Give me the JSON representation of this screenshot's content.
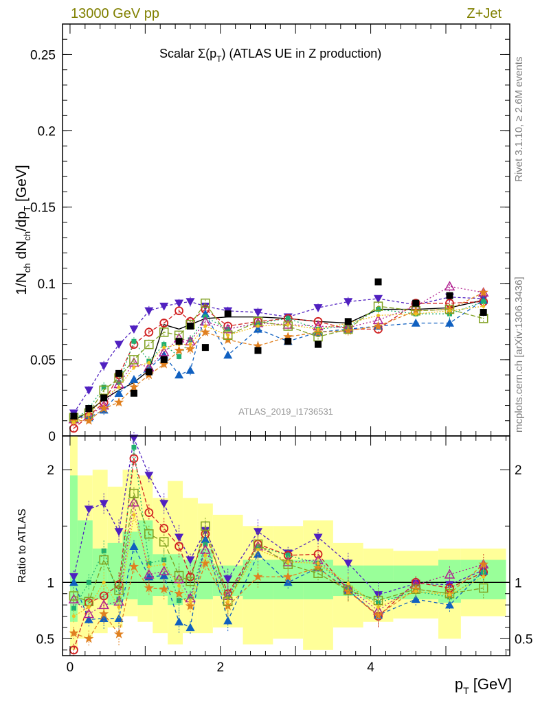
{
  "header": {
    "left": "13000 GeV pp",
    "right": "Z+Jet"
  },
  "side_labels": {
    "rivet": "Rivet 3.1.10, ≥ 2.6M events",
    "mcplots": "mcplots.cern.ch [arXiv:1306.3436]"
  },
  "watermark": "ATLAS_2019_I1736531",
  "colors": {
    "data": "#000000",
    "band_inner": "#99ff99",
    "band_outer": "#ffff99",
    "header": "#808000",
    "side": "#7f7f7f"
  },
  "chart_data": [
    {
      "type": "scatter",
      "title": "Scalar Σ(p_T) (ATLAS UE in Z production)",
      "title_main": "Scalar Σ(p",
      "title_sub": "T",
      "title_tail": ") (ATLAS UE in Z production)",
      "ylabel": "1/N_ch dN_ch/dp_T [GeV]",
      "xlim": [
        -0.1,
        5.85
      ],
      "ylim": [
        0,
        0.27
      ],
      "yticks": [
        0,
        0.05,
        0.1,
        0.15,
        0.2,
        0.25
      ],
      "ytick_labels": [
        "0",
        "0.05",
        "0.1",
        "0.15",
        "0.2",
        "0.25"
      ],
      "x": [
        0.05,
        0.25,
        0.45,
        0.65,
        0.85,
        1.05,
        1.25,
        1.45,
        1.6,
        1.8,
        2.1,
        2.5,
        2.9,
        3.3,
        3.7,
        4.1,
        4.6,
        5.05,
        5.5
      ],
      "data_series": {
        "name": "ATLAS",
        "values": [
          0.013,
          0.018,
          0.025,
          0.041,
          0.028,
          0.042,
          0.05,
          0.062,
          0.072,
          0.058,
          0.08,
          0.056,
          0.062,
          0.06,
          0.075,
          0.101,
          0.087,
          0.092,
          0.081
        ]
      },
      "reference_line": [
        0.01,
        0.016,
        0.024,
        0.03,
        0.035,
        0.043,
        0.073,
        0.07,
        0.073,
        0.077,
        0.078,
        0.078,
        0.077,
        0.075,
        0.074,
        0.083,
        0.083,
        0.084,
        0.089
      ],
      "series": [
        {
          "color": "#5020c0",
          "marker": "tri-down",
          "values": [
            0.015,
            0.03,
            0.046,
            0.06,
            0.07,
            0.082,
            0.085,
            0.087,
            0.088,
            0.085,
            0.082,
            0.081,
            0.078,
            0.084,
            0.088,
            0.09,
            0.086,
            0.091,
            0.09
          ]
        },
        {
          "color": "#d02020",
          "marker": "circle",
          "values": [
            0.005,
            0.013,
            0.022,
            0.04,
            0.06,
            0.068,
            0.074,
            0.082,
            0.075,
            0.083,
            0.072,
            0.075,
            0.077,
            0.075,
            0.07,
            0.07,
            0.087,
            0.087,
            0.088
          ]
        },
        {
          "color": "#1060c0",
          "marker": "tri-up",
          "values": [
            0.013,
            0.012,
            0.017,
            0.028,
            0.037,
            0.044,
            0.053,
            0.04,
            0.043,
            0.08,
            0.053,
            0.07,
            0.062,
            0.068,
            0.07,
            0.072,
            0.074,
            0.074,
            0.089
          ]
        },
        {
          "color": "#20b070",
          "marker": "square-filled",
          "values": [
            0.01,
            0.018,
            0.032,
            0.035,
            0.062,
            0.049,
            0.06,
            0.052,
            0.063,
            0.078,
            0.07,
            0.074,
            0.077,
            0.07,
            0.072,
            0.083,
            0.08,
            0.08,
            0.088
          ]
        },
        {
          "color": "#b02090",
          "marker": "tri-open",
          "values": [
            0.011,
            0.013,
            0.02,
            0.034,
            0.048,
            0.045,
            0.055,
            0.064,
            0.062,
            0.075,
            0.07,
            0.074,
            0.073,
            0.072,
            0.071,
            0.076,
            0.085,
            0.098,
            0.094
          ]
        },
        {
          "color": "#e08020",
          "marker": "star",
          "values": [
            0.01,
            0.01,
            0.018,
            0.022,
            0.032,
            0.04,
            0.047,
            0.056,
            0.057,
            0.068,
            0.063,
            0.059,
            0.065,
            0.068,
            0.069,
            0.072,
            0.082,
            0.083,
            0.094
          ]
        },
        {
          "color": "#80a020",
          "marker": "square-open",
          "values": [
            0.012,
            0.015,
            0.03,
            0.038,
            0.05,
            0.06,
            0.068,
            0.066,
            0.073,
            0.087,
            0.066,
            0.075,
            0.072,
            0.065,
            0.07,
            0.085,
            0.082,
            0.083,
            0.077
          ]
        },
        {
          "color": "#f0c020",
          "marker": "dot",
          "values": [
            0.009,
            0.014,
            0.025,
            0.032,
            0.045,
            0.048,
            0.058,
            0.06,
            0.06,
            0.072,
            0.066,
            0.072,
            0.073,
            0.07,
            0.074,
            0.079,
            0.08,
            0.082,
            0.085
          ]
        }
      ]
    },
    {
      "type": "scatter",
      "title": "",
      "ylabel": "Ratio to ATLAS",
      "xlabel": "p_T [GeV]",
      "xlabel_main": "p",
      "xlabel_sub": "T",
      "xlabel_tail": " [GeV]",
      "xlim": [
        -0.1,
        5.85
      ],
      "ylim": [
        0.35,
        2.3
      ],
      "xticks": [
        0,
        2,
        4
      ],
      "xtick_labels": [
        "0",
        "2",
        "4"
      ],
      "yticks": [
        0.5,
        1,
        2
      ],
      "ytick_labels": [
        "0.5",
        "1",
        "2"
      ],
      "bin_edges": [
        0,
        0.1,
        0.3,
        0.5,
        0.7,
        0.9,
        1.1,
        1.3,
        1.5,
        1.7,
        1.9,
        2.3,
        2.7,
        3.1,
        3.5,
        3.9,
        4.3,
        4.9,
        5.2,
        5.8
      ],
      "band_inner": [
        [
          0.65,
          1.95
        ],
        [
          0.8,
          1.55
        ],
        [
          0.85,
          1.3
        ],
        [
          0.8,
          1.35
        ],
        [
          0.85,
          1.45
        ],
        [
          0.8,
          1.55
        ],
        [
          0.88,
          1.25
        ],
        [
          0.8,
          1.25
        ],
        [
          0.85,
          1.2
        ],
        [
          0.85,
          1.3
        ],
        [
          0.88,
          1.15
        ],
        [
          0.85,
          1.2
        ],
        [
          0.85,
          1.2
        ],
        [
          0.85,
          1.2
        ],
        [
          0.88,
          1.15
        ],
        [
          0.85,
          1.15
        ],
        [
          0.85,
          1.15
        ],
        [
          0.82,
          1.2
        ],
        [
          0.85,
          1.2
        ]
      ],
      "band_outer": [
        [
          0.4,
          2.3
        ],
        [
          0.5,
          1.95
        ],
        [
          0.55,
          2.0
        ],
        [
          0.6,
          1.85
        ],
        [
          0.7,
          2.0
        ],
        [
          0.65,
          1.95
        ],
        [
          0.55,
          1.75
        ],
        [
          0.45,
          1.9
        ],
        [
          0.55,
          1.75
        ],
        [
          0.55,
          1.7
        ],
        [
          0.6,
          1.6
        ],
        [
          0.45,
          1.5
        ],
        [
          0.5,
          1.5
        ],
        [
          0.4,
          1.55
        ],
        [
          0.6,
          1.35
        ],
        [
          0.65,
          1.3
        ],
        [
          0.68,
          1.28
        ],
        [
          0.5,
          1.3
        ],
        [
          0.7,
          1.3
        ]
      ],
      "series": [
        {
          "color": "#5020c0",
          "values": [
            1.05,
            1.65,
            1.7,
            1.45,
            2.35,
            1.95,
            1.7,
            1.4,
            1.2,
            1.46,
            1.03,
            1.45,
            1.26,
            1.4,
            1.17,
            0.89,
            0.99,
            0.98,
            1.11
          ]
        },
        {
          "color": "#d02020",
          "values": [
            0.4,
            0.82,
            0.88,
            0.98,
            2.1,
            1.62,
            1.48,
            1.32,
            1.05,
            1.43,
            0.9,
            1.34,
            1.24,
            1.25,
            0.93,
            0.7,
            1.0,
            0.95,
            1.09
          ]
        },
        {
          "color": "#1060c0",
          "values": [
            1.0,
            0.67,
            0.68,
            0.68,
            1.32,
            1.05,
            1.06,
            0.65,
            0.6,
            1.38,
            0.66,
            1.25,
            1.0,
            1.13,
            0.93,
            0.71,
            0.85,
            0.8,
            1.1
          ]
        },
        {
          "color": "#20b070",
          "values": [
            0.77,
            1.0,
            1.28,
            0.85,
            2.2,
            1.17,
            1.2,
            0.84,
            0.87,
            1.34,
            0.87,
            1.32,
            1.24,
            1.17,
            0.96,
            0.82,
            0.92,
            0.87,
            1.09
          ]
        },
        {
          "color": "#b02090",
          "values": [
            0.85,
            0.72,
            0.8,
            0.83,
            1.71,
            1.07,
            1.1,
            1.03,
            0.86,
            1.29,
            0.88,
            1.32,
            1.18,
            1.2,
            0.95,
            0.75,
            0.98,
            1.07,
            1.16
          ]
        },
        {
          "color": "#e08020",
          "values": [
            0.55,
            0.5,
            0.72,
            0.54,
            1.14,
            0.95,
            0.94,
            0.9,
            0.79,
            1.17,
            0.79,
            1.05,
            1.05,
            1.13,
            0.92,
            0.71,
            0.94,
            0.9,
            1.16
          ]
        },
        {
          "color": "#80a020",
          "values": [
            0.88,
            0.83,
            1.2,
            0.93,
            1.79,
            1.43,
            1.36,
            1.06,
            1.01,
            1.5,
            0.83,
            1.34,
            1.16,
            1.08,
            0.93,
            0.84,
            0.94,
            0.9,
            0.95
          ]
        },
        {
          "color": "#f0c020",
          "values": [
            0.7,
            0.78,
            1.0,
            0.78,
            1.6,
            1.14,
            1.16,
            0.97,
            0.83,
            1.24,
            0.83,
            1.29,
            1.18,
            1.17,
            0.99,
            0.78,
            0.92,
            0.89,
            1.05
          ]
        }
      ]
    }
  ]
}
